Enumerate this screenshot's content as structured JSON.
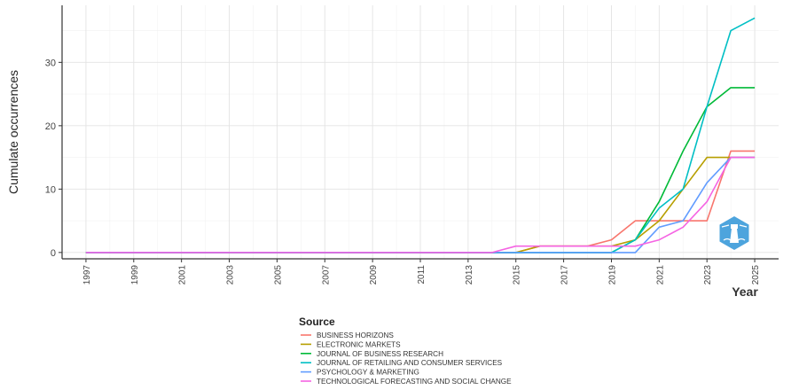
{
  "chart_data": {
    "type": "line",
    "title": "",
    "xlabel": "Year",
    "ylabel": "Cumulate occurrences",
    "xlim": [
      1996,
      2026
    ],
    "ylim": [
      -1,
      39
    ],
    "x_ticks": [
      "1997",
      "1999",
      "2001",
      "2003",
      "2005",
      "2007",
      "2009",
      "2011",
      "2013",
      "2015",
      "2017",
      "2019",
      "2021",
      "2023",
      "2025"
    ],
    "y_ticks": [
      "0",
      "10",
      "20",
      "30"
    ],
    "grid": true,
    "legend_title": "Source",
    "legend_position": "bottom",
    "x": [
      1997,
      1998,
      1999,
      2000,
      2001,
      2002,
      2003,
      2004,
      2005,
      2006,
      2007,
      2008,
      2009,
      2010,
      2011,
      2012,
      2013,
      2014,
      2015,
      2016,
      2017,
      2018,
      2019,
      2020,
      2021,
      2022,
      2023,
      2024,
      2025
    ],
    "series": [
      {
        "name": "BUSINESS HORIZONS",
        "color": "#F8766D",
        "values": [
          0,
          0,
          0,
          0,
          0,
          0,
          0,
          0,
          0,
          0,
          0,
          0,
          0,
          0,
          0,
          0,
          0,
          0,
          0,
          1,
          1,
          1,
          2,
          5,
          5,
          5,
          5,
          16,
          16
        ]
      },
      {
        "name": "ELECTRONIC MARKETS",
        "color": "#B79F00",
        "values": [
          0,
          0,
          0,
          0,
          0,
          0,
          0,
          0,
          0,
          0,
          0,
          0,
          0,
          0,
          0,
          0,
          0,
          0,
          0,
          1,
          1,
          1,
          1,
          2,
          5,
          10,
          15,
          15,
          15
        ]
      },
      {
        "name": "JOURNAL OF BUSINESS RESEARCH",
        "color": "#00BA38",
        "values": [
          0,
          0,
          0,
          0,
          0,
          0,
          0,
          0,
          0,
          0,
          0,
          0,
          0,
          0,
          0,
          0,
          0,
          0,
          0,
          0,
          0,
          0,
          0,
          2,
          8,
          16,
          23,
          26,
          26
        ]
      },
      {
        "name": "JOURNAL OF RETAILING AND CONSUMER SERVICES",
        "color": "#00BFC4",
        "values": [
          0,
          0,
          0,
          0,
          0,
          0,
          0,
          0,
          0,
          0,
          0,
          0,
          0,
          0,
          0,
          0,
          0,
          0,
          0,
          0,
          0,
          0,
          0,
          2,
          7,
          10,
          23,
          35,
          37
        ]
      },
      {
        "name": "PSYCHOLOGY & MARKETING",
        "color": "#619CFF",
        "values": [
          0,
          0,
          0,
          0,
          0,
          0,
          0,
          0,
          0,
          0,
          0,
          0,
          0,
          0,
          0,
          0,
          0,
          0,
          0,
          0,
          0,
          0,
          0,
          0,
          4,
          5,
          11,
          15,
          15
        ]
      },
      {
        "name": "TECHNOLOGICAL FORECASTING AND SOCIAL CHANGE",
        "color": "#F564E3",
        "values": [
          0,
          0,
          0,
          0,
          0,
          0,
          0,
          0,
          0,
          0,
          0,
          0,
          0,
          0,
          0,
          0,
          0,
          0,
          1,
          1,
          1,
          1,
          1,
          1,
          2,
          4,
          8,
          15,
          15
        ]
      }
    ]
  },
  "watermark": {
    "icon": "lighthouse-logo-icon",
    "color": "#3a9ad9"
  }
}
